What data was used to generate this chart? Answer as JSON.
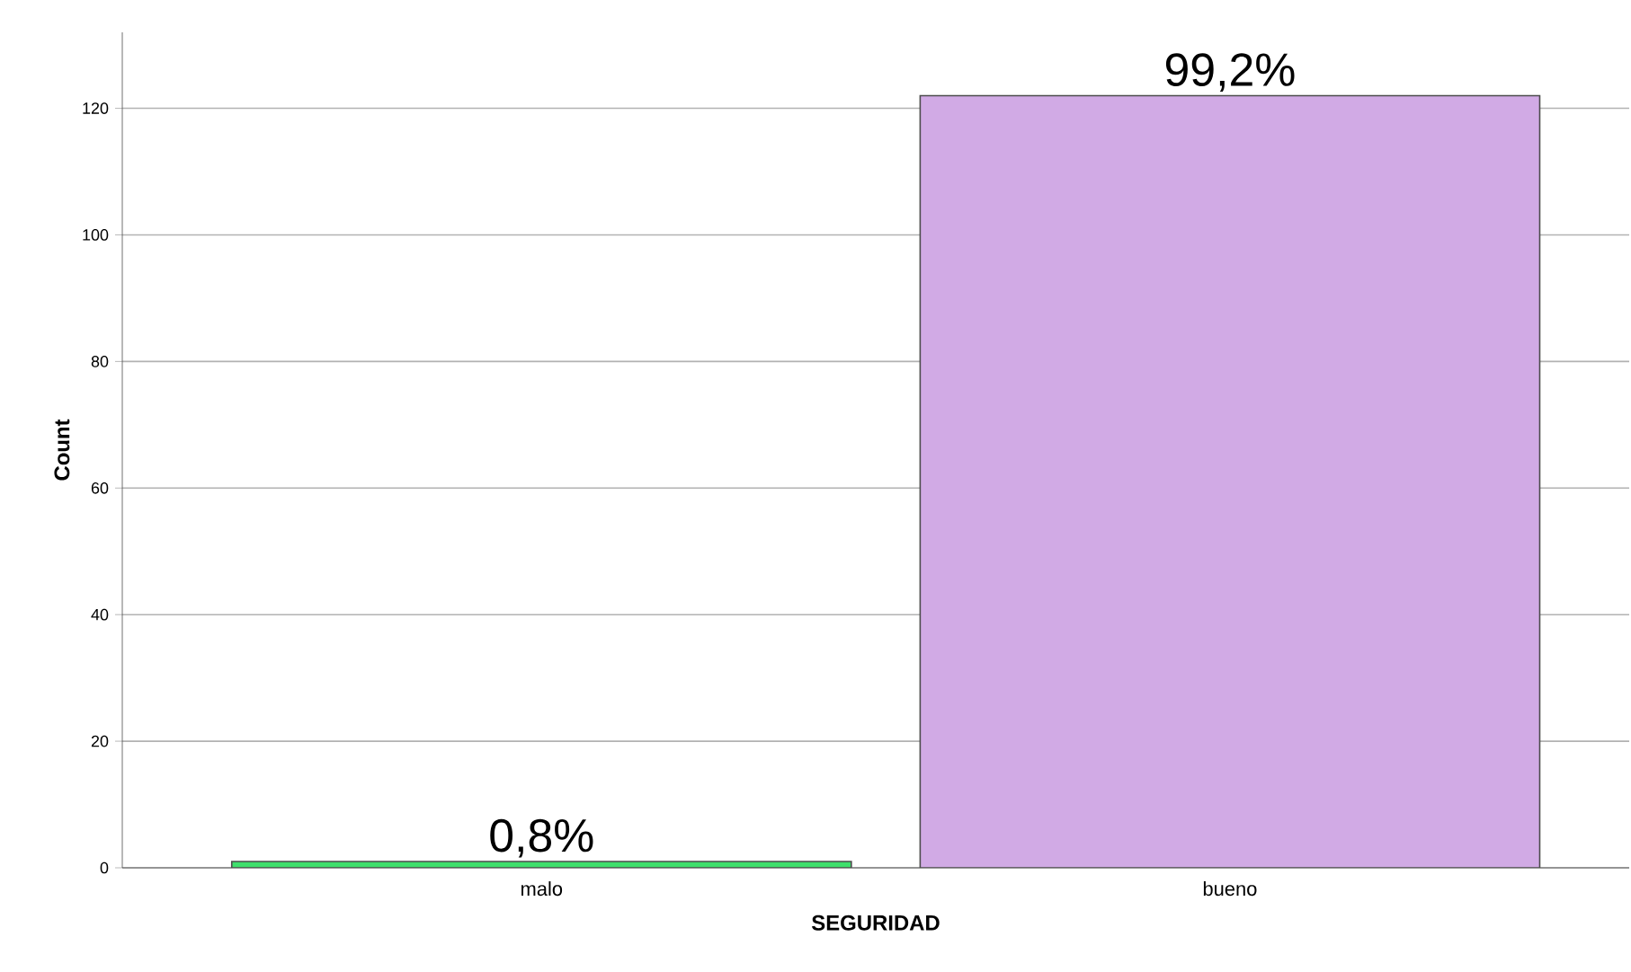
{
  "chart_data": {
    "type": "bar",
    "xlabel": "SEGURIDAD",
    "ylabel": "Count",
    "categories": [
      "malo",
      "bueno"
    ],
    "values": [
      1,
      122
    ],
    "annotations": [
      {
        "text": "0,8%",
        "x": "malo",
        "y": 1
      },
      {
        "text": "99,2%",
        "x": "bueno",
        "y": 122
      }
    ],
    "colors": [
      "#3ee06c",
      "#d1aae5"
    ],
    "ylim": [
      0,
      132
    ],
    "yticks": [
      0,
      20,
      40,
      60,
      80,
      100,
      120
    ],
    "grid": "y"
  }
}
